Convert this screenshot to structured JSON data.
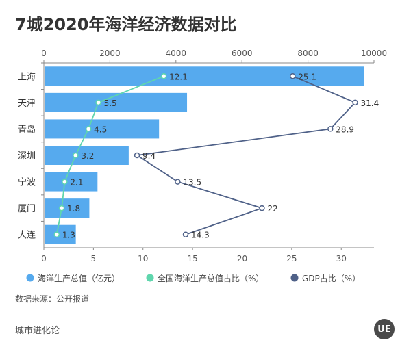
{
  "chart_data": {
    "type": "bar",
    "title": "7城2020年海洋经济数据对比",
    "categories": [
      "上海",
      "天津",
      "青岛",
      "深圳",
      "宁波",
      "厦门",
      "大连"
    ],
    "x_top_axis": {
      "min": 0,
      "max": 10000,
      "ticks": [
        "0",
        "2000",
        "4000",
        "6000",
        "8000",
        "10000"
      ]
    },
    "x_bottom_axis": {
      "min": 0,
      "max": 33.3,
      "ticks": [
        "0",
        "5",
        "10",
        "15",
        "20",
        "25",
        "30"
      ]
    },
    "series": [
      {
        "name": "海洋生产总值（亿元）",
        "kind": "bar",
        "axis": "top",
        "color": "#56aaee",
        "values": [
          9707,
          4337,
          3489,
          2570,
          1625,
          1378,
          968
        ]
      },
      {
        "name": "全国海洋生产总值占比（%）",
        "kind": "line",
        "axis": "bottom",
        "color": "#5fd6ad",
        "values": [
          12.1,
          5.5,
          4.5,
          3.2,
          2.1,
          1.8,
          1.3
        ],
        "labels": [
          "12.1",
          "5.5",
          "4.5",
          "3.2",
          "2.1",
          "1.8",
          "1.3"
        ]
      },
      {
        "name": "GDP占比（%）",
        "kind": "line",
        "axis": "bottom",
        "color": "#4f6188",
        "values": [
          25.1,
          31.4,
          28.9,
          9.4,
          13.5,
          22,
          14.3
        ],
        "labels": [
          "25.1",
          "31.4",
          "28.9",
          "9.4",
          "13.5",
          "22",
          "14.3"
        ]
      }
    ],
    "legend": [
      {
        "label": "海洋生产总值（亿元）",
        "color": "#56aaee"
      },
      {
        "label": "全国海洋生产总值占比（%）",
        "color": "#5fd6ad"
      },
      {
        "label": "GDP占比（%）",
        "color": "#4f6188"
      }
    ]
  },
  "source": "数据来源：公开报道",
  "brand": "城市进化论",
  "logo_text": "UE"
}
